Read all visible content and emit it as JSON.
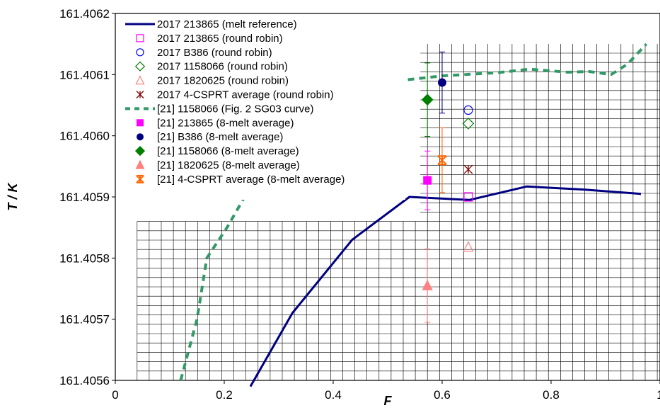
{
  "chart_data": {
    "type": "scatter",
    "xlabel": "F",
    "ylabel": "T / K",
    "xlim": [
      0,
      1
    ],
    "ylim": [
      161.4056,
      161.4062
    ],
    "x_ticks": [
      "0",
      "0.2",
      "0.4",
      "0.6",
      "0.8",
      "1"
    ],
    "y_ticks": [
      "161.4056",
      "161.4057",
      "161.4058",
      "161.4059",
      "161.4060",
      "161.4061",
      "161.4062"
    ],
    "grid": "dense horizontal/vertical gridlines in lower right region",
    "legend_position": "top-left",
    "series": [
      {
        "name": "2017   213865 (melt reference)",
        "kind": "line",
        "color": "#000080",
        "dash": "solid",
        "points": [
          [
            0.248,
            161.40559
          ],
          [
            0.325,
            161.40571
          ],
          [
            0.435,
            161.40583
          ],
          [
            0.54,
            161.4059
          ],
          [
            0.65,
            161.405895
          ],
          [
            0.755,
            161.405917
          ],
          [
            0.86,
            161.405912
          ],
          [
            0.965,
            161.405905
          ]
        ]
      },
      {
        "name": "2017   213865 (round robin)",
        "kind": "marker",
        "marker": "square-open",
        "color": "#ff00ff",
        "points": [
          [
            0.648,
            161.4059
          ]
        ]
      },
      {
        "name": "2017   B386 (round robin)",
        "kind": "marker",
        "marker": "circle-open",
        "color": "#0000ff",
        "points": [
          [
            0.648,
            161.406042
          ]
        ]
      },
      {
        "name": "2017   1158066 (round robin)",
        "kind": "marker",
        "marker": "diamond-open",
        "color": "#008000",
        "points": [
          [
            0.648,
            161.40602
          ]
        ]
      },
      {
        "name": "2017   1820625 (round robin)",
        "kind": "marker",
        "marker": "triangle-open",
        "color": "#ff8080",
        "points": [
          [
            0.648,
            161.405818
          ]
        ]
      },
      {
        "name": "2017   4-CSPRT average (round robin)",
        "kind": "marker",
        "marker": "star",
        "color": "#800000",
        "points": [
          [
            0.648,
            161.405945
          ]
        ]
      },
      {
        "name": "[21] 1158066 (Fig. 2 SG03 curve)",
        "kind": "line",
        "color": "#339966",
        "dash": "dashed",
        "points": [
          [
            0.12,
            161.4056
          ],
          [
            0.15,
            161.4057
          ],
          [
            0.168,
            161.4058
          ],
          [
            0.205,
            161.40585
          ],
          [
            0.26,
            161.405935
          ],
          [
            0.32,
            161.406
          ],
          [
            0.39,
            161.406055
          ],
          [
            0.47,
            161.406082
          ],
          [
            0.52,
            161.40609
          ],
          [
            0.6,
            161.406098
          ],
          [
            0.7,
            161.406103
          ],
          [
            0.76,
            161.406109
          ],
          [
            0.83,
            161.406104
          ],
          [
            0.87,
            161.406105
          ],
          [
            0.91,
            161.4061
          ],
          [
            0.94,
            161.406117
          ],
          [
            0.975,
            161.40615
          ]
        ]
      },
      {
        "name": "[21] 213865 (8-melt average)",
        "kind": "marker",
        "marker": "square-filled",
        "color": "#ff00ff",
        "points": [
          [
            0.573,
            161.405927
          ]
        ],
        "err": [
          4.8e-05
        ]
      },
      {
        "name": "[21] B386 (8-melt average)",
        "kind": "marker",
        "marker": "circle-filled",
        "color": "#000080",
        "points": [
          [
            0.6,
            161.406087
          ]
        ],
        "err": [
          5e-05
        ]
      },
      {
        "name": "[21] 1158066 (8-melt average)",
        "kind": "marker",
        "marker": "diamond-filled",
        "color": "#008000",
        "points": [
          [
            0.573,
            161.406059
          ]
        ],
        "err": [
          6e-05
        ]
      },
      {
        "name": "[21] 1820625 (8-melt average)",
        "kind": "marker",
        "marker": "triangle-filled",
        "color": "#ff8080",
        "points": [
          [
            0.573,
            161.405755
          ]
        ],
        "err": [
          6e-05
        ]
      },
      {
        "name": "[21] 4-CSPRT average (8-melt average)",
        "kind": "marker",
        "marker": "star-boxed",
        "color": "#ff6600",
        "points": [
          [
            0.6,
            161.40596
          ]
        ],
        "err": [
          5.3e-05
        ]
      }
    ]
  }
}
